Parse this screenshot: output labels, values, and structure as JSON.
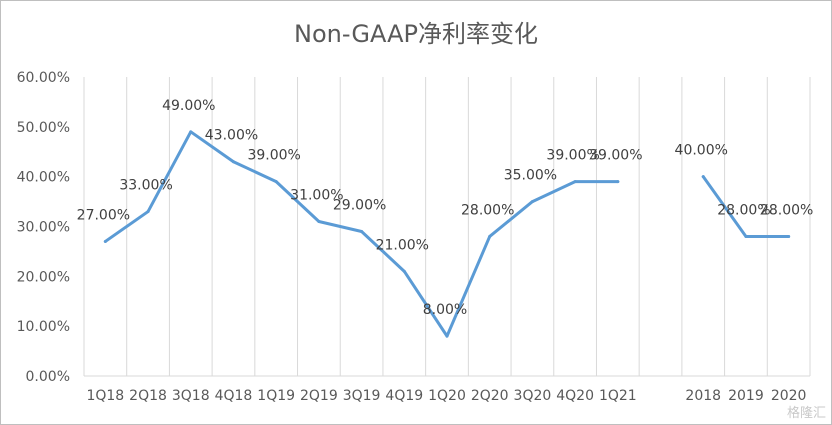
{
  "chart_data": {
    "type": "line",
    "title": "Non-GAAP净利率变化",
    "xlabel": "",
    "ylabel": "",
    "ylim": [
      0,
      60
    ],
    "yticks": [
      "0.00%",
      "10.00%",
      "20.00%",
      "30.00%",
      "40.00%",
      "50.00%",
      "60.00%"
    ],
    "grid": "vertical",
    "legend": "none",
    "line_color": "#5b9bd5",
    "categories": [
      "1Q18",
      "2Q18",
      "3Q18",
      "4Q18",
      "1Q19",
      "2Q19",
      "3Q19",
      "4Q19",
      "1Q20",
      "2Q20",
      "3Q20",
      "4Q20",
      "1Q21",
      "",
      "2018",
      "2019",
      "2020"
    ],
    "values": [
      27,
      33,
      49,
      43,
      39,
      31,
      29,
      21,
      8,
      28,
      35,
      39,
      39,
      null,
      40,
      28,
      28
    ],
    "labels": [
      "27.00%",
      "33.00%",
      "49.00%",
      "43.00%",
      "39.00%",
      "31.00%",
      "29.00%",
      "21.00%",
      "8.00%",
      "28.00%",
      "35.00%",
      "39.00%",
      "39.00%",
      "",
      "40.00%",
      "28.00%",
      "28.00%"
    ]
  },
  "watermark": "格隆汇"
}
